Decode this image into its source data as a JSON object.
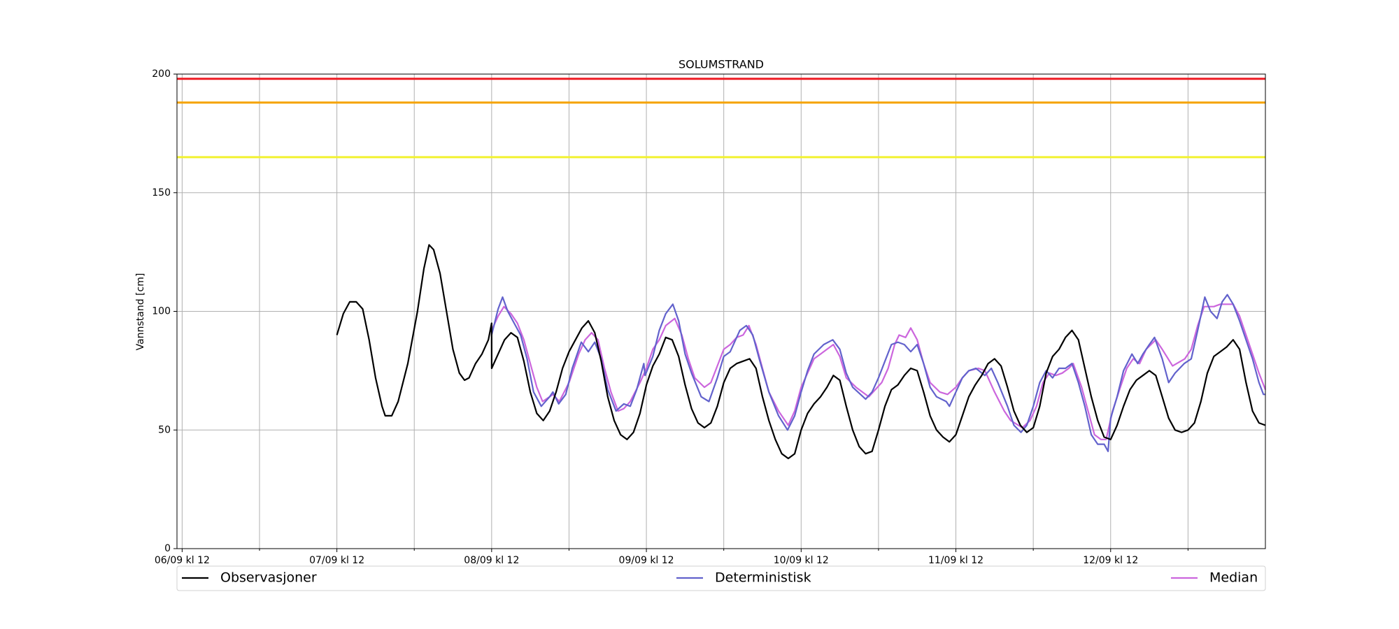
{
  "chart_data": {
    "type": "line",
    "title": "SOLUMSTRAND",
    "y_label": "Vannstand [cm]",
    "xlim": [
      -0.8,
      168
    ],
    "xticks": [
      {
        "value": 0,
        "label": "06/09 kl 12"
      },
      {
        "value": 24,
        "label": "07/09 kl 12"
      },
      {
        "value": 48,
        "label": "08/09 kl 12"
      },
      {
        "value": 72,
        "label": "09/09 kl 12"
      },
      {
        "value": 96,
        "label": "10/09 kl 12"
      },
      {
        "value": 120,
        "label": "11/09 kl 12"
      },
      {
        "value": 144,
        "label": "12/09 kl 12"
      }
    ],
    "xticks_minor": [
      12,
      36,
      60,
      84,
      108,
      132,
      156
    ],
    "ylim": [
      0,
      200
    ],
    "yticks": [
      0,
      50,
      100,
      150,
      200
    ],
    "grid": true,
    "legend": "lower center outside",
    "hlines": [
      {
        "value": 198,
        "color": "#ee1c24"
      },
      {
        "value": 188,
        "color": "#f5a300"
      },
      {
        "value": 165,
        "color": "#f2f230"
      }
    ],
    "series": [
      {
        "name": "Observasjoner",
        "color": "#000000",
        "x": [
          24,
          25,
          26,
          27,
          28,
          29,
          30,
          31,
          31.5,
          32.5,
          33.5,
          35,
          36.5,
          37.5,
          38.3,
          39,
          40,
          41,
          42,
          43,
          43.8,
          44.5,
          45.5,
          46.5,
          47.5,
          48,
          48.01,
          49,
          50,
          51,
          52,
          53,
          54,
          55,
          56,
          57,
          58,
          59,
          60,
          61,
          62,
          63,
          64,
          65,
          66,
          67,
          68,
          69,
          70,
          71,
          72,
          73,
          74,
          75,
          76,
          77,
          78,
          79,
          80,
          81,
          82,
          83,
          84,
          85,
          86,
          87,
          88,
          89,
          90,
          91,
          92,
          93,
          94,
          95,
          96,
          97,
          98,
          99,
          100,
          101,
          102,
          103,
          104,
          105,
          106,
          107,
          108,
          109,
          110,
          111,
          112,
          113,
          114,
          115,
          116,
          117,
          118,
          119,
          120,
          121,
          122,
          123,
          124,
          125,
          126,
          127,
          128,
          129,
          130,
          131,
          132,
          133,
          134,
          135,
          136,
          137,
          138,
          139,
          140,
          141,
          142,
          143,
          144,
          145,
          146,
          147,
          148,
          149,
          150,
          151,
          152,
          153,
          154,
          155,
          156,
          157,
          158,
          159,
          160,
          161,
          162,
          163,
          164,
          165,
          166,
          167,
          168
        ],
        "values": [
          90,
          99,
          104,
          104,
          101,
          88,
          72,
          60,
          56,
          56,
          62,
          78,
          100,
          118,
          128,
          126,
          116,
          100,
          84,
          74,
          71,
          72,
          78,
          82,
          88,
          95,
          76,
          82,
          88,
          91,
          89,
          79,
          66,
          57,
          54,
          58,
          66,
          76,
          83,
          88,
          93,
          96,
          91,
          79,
          64,
          54,
          48,
          46,
          49,
          57,
          69,
          77,
          82,
          89,
          88,
          81,
          69,
          59,
          53,
          51,
          53,
          60,
          70,
          76,
          78,
          79,
          80,
          76,
          64,
          54,
          46,
          40,
          38,
          40,
          50,
          57,
          61,
          64,
          68,
          73,
          71,
          60,
          50,
          43,
          40,
          41,
          50,
          60,
          67,
          69,
          73,
          76,
          75,
          66,
          56,
          50,
          47,
          45,
          48,
          56,
          64,
          69,
          73,
          78,
          80,
          77,
          68,
          58,
          52,
          49,
          51,
          60,
          74,
          81,
          84,
          89,
          92,
          88,
          76,
          64,
          54,
          47,
          46,
          52,
          60,
          67,
          71,
          73,
          75,
          73,
          64,
          55,
          50,
          49,
          50,
          53,
          62,
          74,
          81,
          83,
          85,
          88,
          84,
          70,
          58,
          53,
          52
        ]
      },
      {
        "name": "Deterministisk",
        "color": "#6262cc",
        "x": [
          48,
          49,
          49.7,
          50.5,
          51.5,
          52.5,
          53.5,
          54.5,
          55.7,
          57,
          57.5,
          58.4,
          59.5,
          60.5,
          61.9,
          63,
          64,
          65,
          66,
          67.3,
          68.5,
          69.5,
          70.5,
          71.6,
          71.8,
          73,
          74,
          75,
          76.1,
          77,
          78,
          79,
          80.5,
          81.7,
          83,
          84,
          85,
          86.5,
          87.5,
          88.5,
          89.5,
          91,
          92.5,
          93.9,
          95,
          96,
          97,
          98,
          99.5,
          100.9,
          102,
          103,
          104,
          106,
          107,
          108,
          109,
          110,
          111,
          112,
          113,
          114,
          115,
          116,
          117,
          118.5,
          119,
          120,
          121,
          122,
          123.1,
          124.5,
          125.5,
          126.5,
          128,
          129,
          130.1,
          131,
          132,
          133,
          134,
          135,
          136,
          137,
          138,
          139,
          140,
          141,
          142,
          143,
          143.6,
          144,
          145,
          146,
          147.3,
          148.2,
          149,
          150,
          150.8,
          152,
          153,
          154,
          155.4,
          156.5,
          157.5,
          158.6,
          159.5,
          160.5,
          161.3,
          162.1,
          163,
          164,
          165,
          166,
          167,
          167.7,
          168
        ],
        "values": [
          90,
          101,
          106,
          100,
          95,
          90,
          80,
          66,
          60,
          64,
          66,
          61,
          65,
          76,
          87,
          83,
          87,
          80,
          67,
          58,
          61,
          60,
          67,
          78,
          73,
          81,
          92,
          99,
          103,
          96,
          82,
          74,
          64,
          62,
          72,
          81,
          83,
          92,
          94,
          90,
          80,
          66,
          56,
          50,
          56,
          66,
          75,
          82,
          86,
          88,
          84,
          74,
          68,
          63,
          66,
          72,
          79,
          86,
          87,
          86,
          83,
          86,
          78,
          68,
          64,
          62,
          60,
          66,
          72,
          75,
          76,
          73,
          76,
          70,
          60,
          52,
          49,
          52,
          60,
          70,
          75,
          72,
          76,
          76,
          78,
          70,
          60,
          48,
          44,
          44,
          41,
          55,
          64,
          75,
          82,
          78,
          82,
          86,
          89,
          80,
          70,
          74,
          78,
          80,
          92,
          106,
          100,
          97,
          104,
          107,
          103,
          96,
          88,
          80,
          70,
          65,
          65
        ]
      },
      {
        "name": "Median",
        "color": "#cc66dd",
        "x": [
          48,
          49,
          49.9,
          51,
          52,
          53,
          54,
          55,
          55.9,
          57,
          57.5,
          58.5,
          60,
          61.5,
          62.5,
          63.5,
          64.5,
          65.5,
          66.5,
          67.6,
          68.5,
          69.5,
          71,
          72,
          73,
          74,
          75,
          76.4,
          77.5,
          78.5,
          79.5,
          81,
          82,
          83,
          84,
          85,
          86,
          87,
          87.9,
          89,
          90,
          91,
          92.5,
          94,
          95,
          96,
          97,
          98,
          99,
          100,
          101,
          102,
          103,
          104.5,
          106.5,
          107.5,
          108.5,
          109.5,
          110.5,
          111.2,
          112.2,
          113,
          114,
          115,
          116,
          117.5,
          118.7,
          120,
          121,
          122,
          123.5,
          124.5,
          126,
          127.5,
          128.5,
          130.3,
          131.5,
          132.5,
          133.5,
          134.5,
          135.5,
          136.5,
          137.5,
          138.2,
          139.5,
          140.5,
          141.5,
          142.5,
          143.3,
          144.3,
          145.5,
          146.5,
          147.5,
          148.5,
          149.5,
          151,
          152,
          153.6,
          155.5,
          156.5,
          157.5,
          158.5,
          160,
          161,
          162,
          163,
          164,
          165,
          166,
          167,
          168
        ],
        "values": [
          92,
          98,
          102,
          99,
          95,
          88,
          78,
          68,
          62,
          64,
          65,
          62,
          70,
          82,
          88,
          91,
          88,
          76,
          66,
          58,
          59,
          62,
          70,
          76,
          84,
          88,
          94,
          97,
          90,
          80,
          72,
          68,
          70,
          77,
          84,
          86,
          89,
          90,
          94,
          86,
          76,
          66,
          58,
          52,
          58,
          68,
          74,
          80,
          82,
          84,
          86,
          81,
          72,
          68,
          64,
          67,
          70,
          76,
          86,
          90,
          89,
          93,
          88,
          78,
          70,
          66,
          65,
          68,
          72,
          75,
          76,
          75,
          66,
          58,
          54,
          51,
          54,
          60,
          70,
          74,
          73,
          74,
          76,
          78,
          68,
          58,
          48,
          46,
          46,
          58,
          68,
          76,
          80,
          78,
          84,
          88,
          84,
          77,
          80,
          84,
          94,
          102,
          102,
          103,
          103,
          103,
          98,
          90,
          82,
          74,
          67
        ]
      }
    ]
  }
}
